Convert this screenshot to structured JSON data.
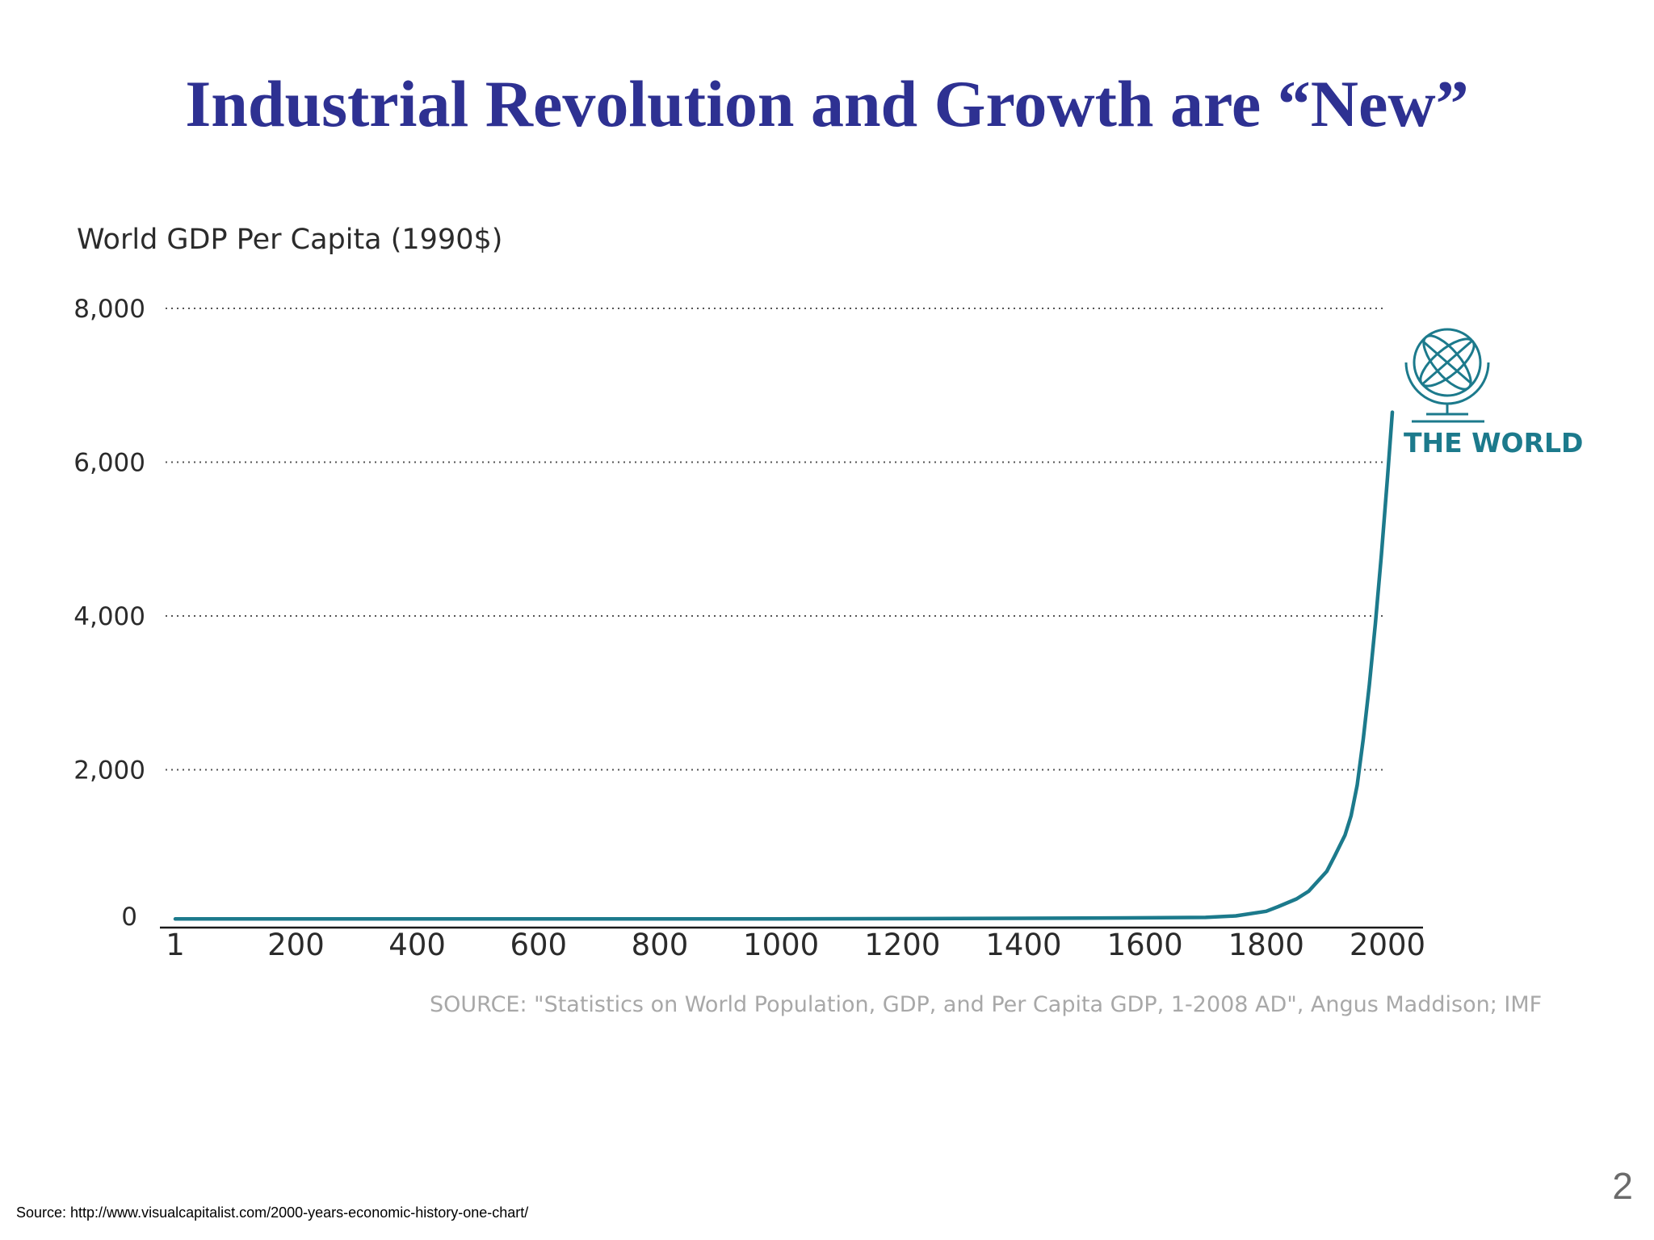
{
  "slide": {
    "title": "Industrial Revolution and Growth are “New”",
    "footer_source": "Source: http://www.visualcapitalist.com/2000-years-economic-history-one-chart/",
    "page_number": "2"
  },
  "chart_data": {
    "type": "line",
    "title": "World GDP Per Capita (1990$)",
    "xlabel": "",
    "ylabel": "",
    "x_ticks": [
      "1",
      "200",
      "400",
      "600",
      "800",
      "1000",
      "1200",
      "1400",
      "1600",
      "1800",
      "2000"
    ],
    "y_ticks": [
      "0",
      "2,000",
      "4,000",
      "6,000",
      "8,000"
    ],
    "xlim": [
      1,
      2000
    ],
    "ylim": [
      0,
      8000
    ],
    "grid": "dotted horizontal",
    "series": [
      {
        "name": "THE WORLD",
        "color": "#1c7a8c",
        "x": [
          1,
          1000,
          1500,
          1600,
          1700,
          1750,
          1800,
          1820,
          1850,
          1870,
          1900,
          1913,
          1930,
          1940,
          1950,
          1960,
          1970,
          1980,
          1990,
          2000,
          2008
        ],
        "y": [
          60,
          60,
          70,
          75,
          80,
          100,
          160,
          220,
          320,
          420,
          680,
          880,
          1150,
          1400,
          1800,
          2400,
          3100,
          3900,
          4800,
          5800,
          6650
        ]
      }
    ],
    "annotation": "THE WORLD",
    "source_note": "SOURCE: \"Statistics on World Population, GDP, and Per Capita GDP, 1-2008 AD\", Angus Maddison; IMF"
  },
  "icons": {
    "series_icon": "globe-icon"
  }
}
